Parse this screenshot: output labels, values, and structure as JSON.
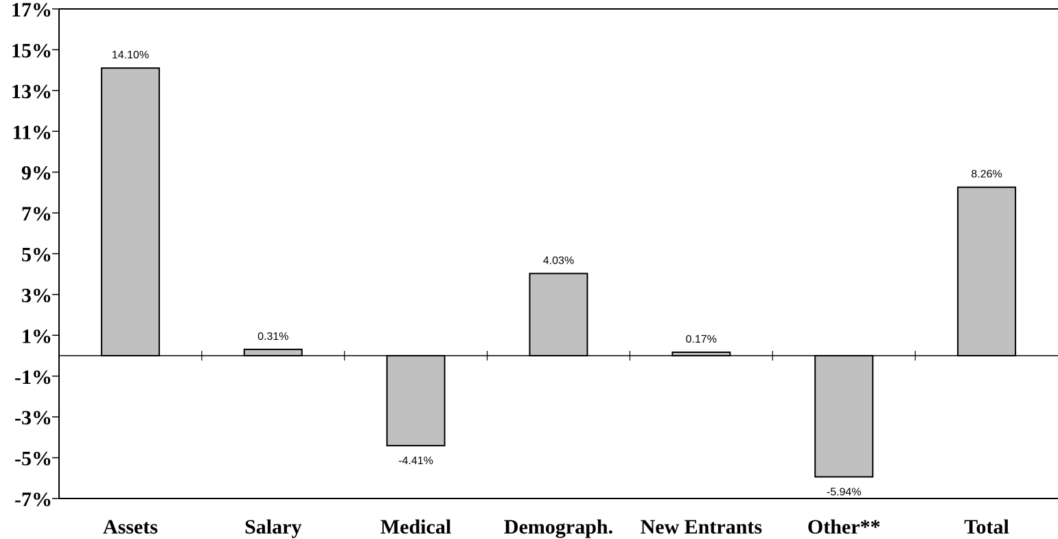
{
  "chart_data": {
    "type": "bar",
    "categories": [
      "Assets",
      "Salary",
      "Medical",
      "Demograph.",
      "New Entrants",
      "Other**",
      "Total"
    ],
    "values": [
      14.1,
      0.31,
      -4.41,
      4.03,
      0.17,
      -5.94,
      8.26
    ],
    "data_labels": [
      "14.10%",
      "0.31%",
      "-4.41%",
      "4.03%",
      "0.17%",
      "-5.94%",
      "8.26%"
    ],
    "y_ticks": [
      17,
      15,
      13,
      11,
      9,
      7,
      5,
      3,
      1,
      -1,
      -3,
      -5,
      -7
    ],
    "y_tick_labels": [
      "17%",
      "15%",
      "13%",
      "11%",
      "9%",
      "7%",
      "5%",
      "3%",
      "1%",
      "-1%",
      "-3%",
      "-5%",
      "-7%"
    ],
    "ylim": [
      -7,
      17
    ],
    "title": "",
    "xlabel": "",
    "ylabel": "",
    "grid": false,
    "colors": {
      "bar_fill": "#c0c0c0",
      "bar_stroke": "#000000",
      "axis": "#000000"
    }
  }
}
